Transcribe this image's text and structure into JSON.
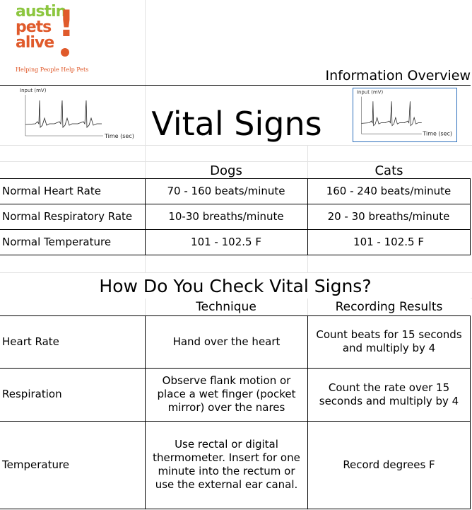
{
  "logo": {
    "line1": "austin",
    "line2": "pets",
    "line3": "alive",
    "exclaim": "!",
    "tagline": "Helping People Help Pets",
    "colors": {
      "green": "#8cc63f",
      "orange": "#e05a2b"
    }
  },
  "header": {
    "overview": "Information Overview",
    "title": "Vital Signs"
  },
  "ecg_chart": {
    "ylabel": "Input (mV)",
    "xlabel": "Time (sec)"
  },
  "normals": {
    "columns": [
      "Dogs",
      "Cats"
    ],
    "rows": [
      {
        "label": "Normal Heart Rate",
        "dogs": "70 - 160 beats/minute",
        "cats": "160 - 240 beats/minute"
      },
      {
        "label": "Normal Respiratory Rate",
        "dogs": "10-30 breaths/minute",
        "cats": "20 - 30 breaths/minute"
      },
      {
        "label": "Normal Temperature",
        "dogs": "101 - 102.5 F",
        "cats": "101 - 102.5 F"
      }
    ]
  },
  "check": {
    "title": "How Do You Check Vital Signs?",
    "columns": [
      "Technique",
      "Recording Results"
    ],
    "rows": [
      {
        "label": "Heart Rate",
        "technique": "Hand over the heart",
        "result": "Count beats for 15 seconds and multiply by 4"
      },
      {
        "label": "Respiration",
        "technique": "Observe flank motion or place a wet finger (pocket mirror) over the nares",
        "result": "Count the rate over 15 seconds and multiply by 4"
      },
      {
        "label": "Temperature",
        "technique": "Use rectal or digital thermometer. Insert for one minute into the rectum or use the external ear canal.",
        "result": "Record degrees F"
      }
    ]
  }
}
